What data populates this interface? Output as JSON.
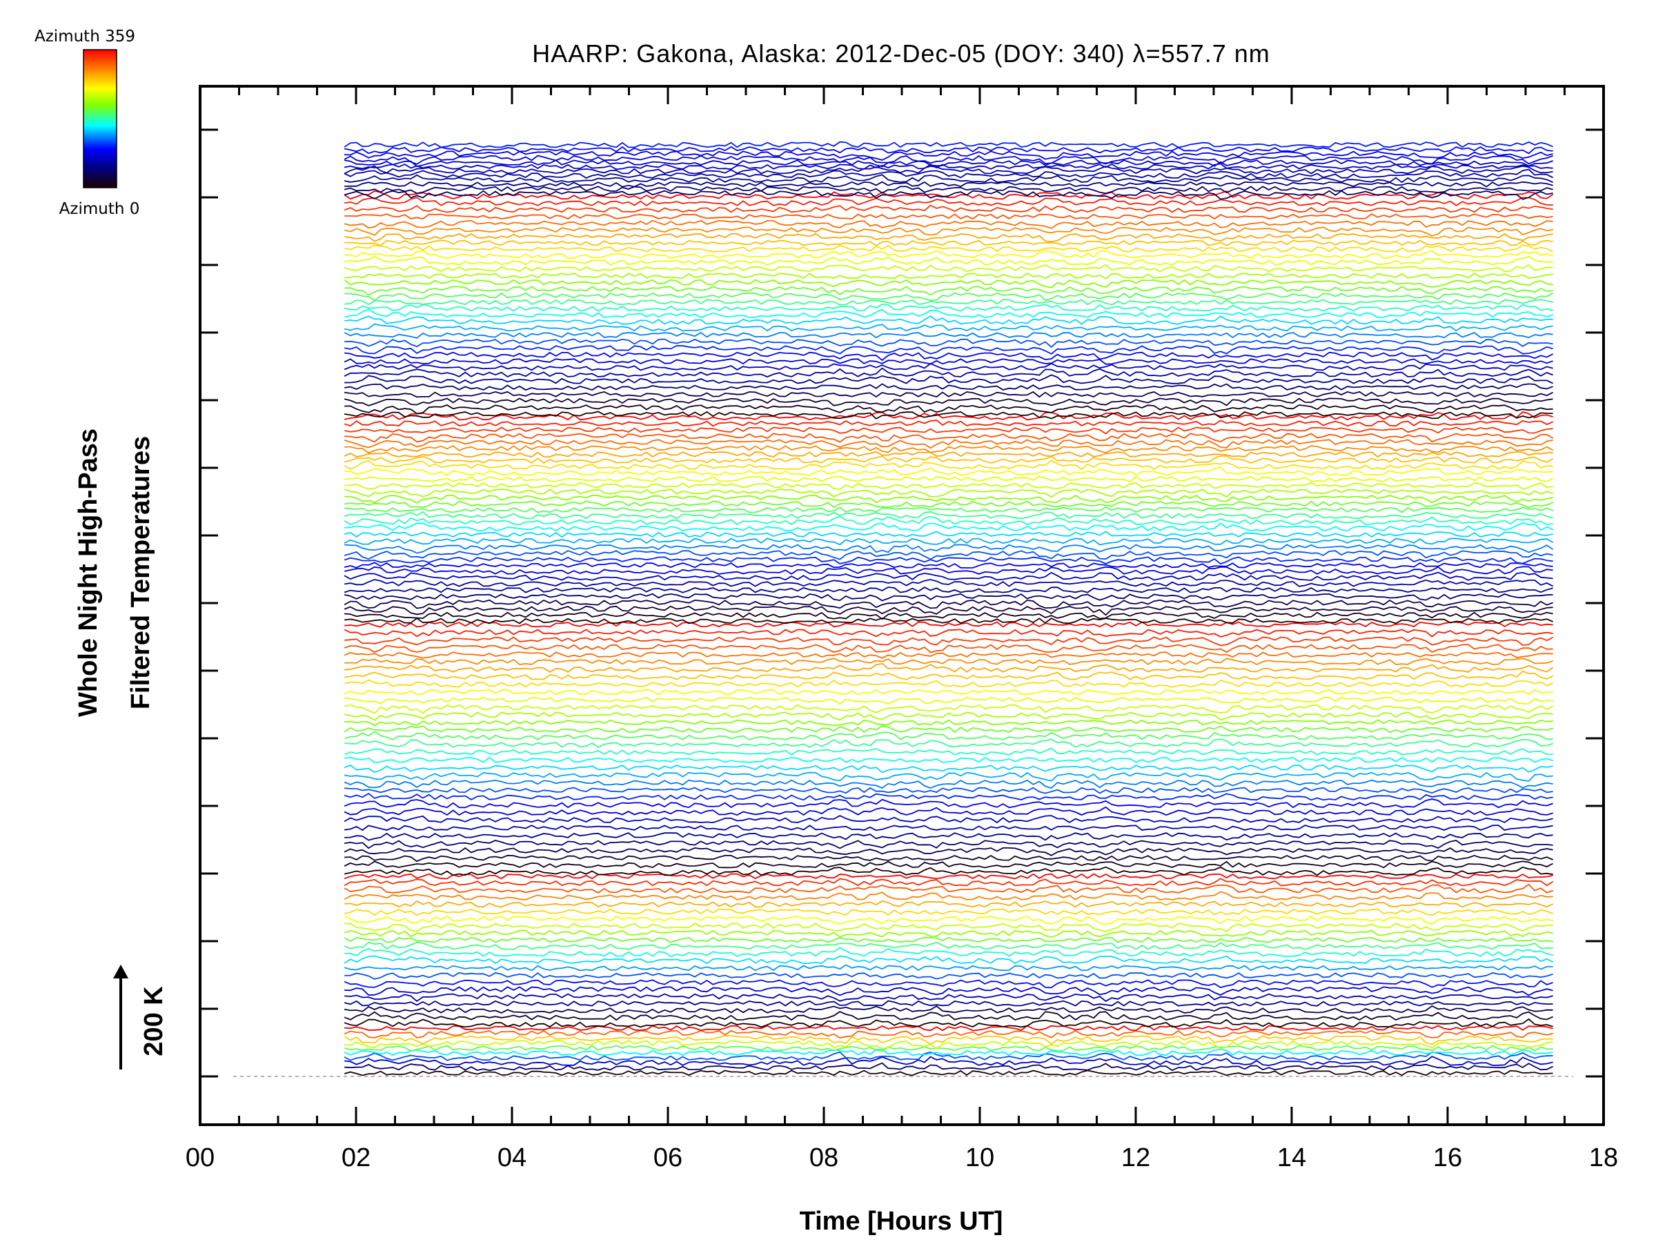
{
  "chart_data": {
    "type": "line",
    "title": "HAARP: Gakona,  Alaska: 2012-Dec-05 (DOY: 340) λ=557.7 nm",
    "xlabel": "Time [Hours UT]",
    "ylabel_line1": "Whole Night High-Pass",
    "ylabel_line2": "Filtered Temperatures",
    "xlim": [
      0,
      18
    ],
    "x_tick_labels": [
      "00",
      "02",
      "04",
      "06",
      "08",
      "10",
      "12",
      "14",
      "16",
      "18"
    ],
    "x_tick_values": [
      0,
      2,
      4,
      6,
      8,
      10,
      12,
      14,
      16,
      18
    ],
    "data_time_range": [
      1.85,
      17.35
    ],
    "y_offset_levels": 14,
    "scale_bar_label": "200 K",
    "colorbar": {
      "top_label": "Azimuth 359",
      "bottom_label": "Azimuth 0",
      "colormap": [
        "#1a0000",
        "#000080",
        "#0000ff",
        "#00ffff",
        "#80ff00",
        "#ffff00",
        "#ff8000",
        "#ff0000"
      ]
    },
    "traces_description": "Stacked high-pass filtered temperature traces, one per azimuth, colored by azimuth (0-359); five repeating rainbow bands from bottom to top.",
    "grid": false
  }
}
